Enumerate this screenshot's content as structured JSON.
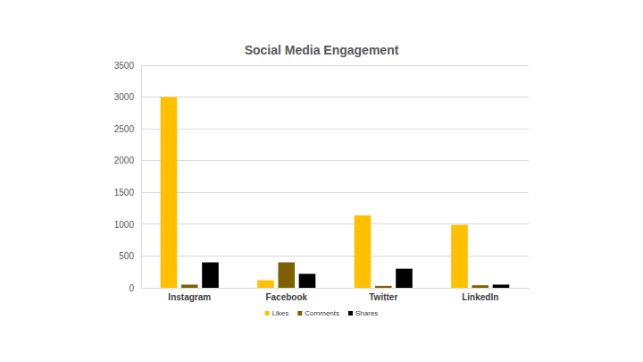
{
  "chart_data": {
    "type": "bar",
    "title": "Social Media Engagement",
    "categories": [
      "Instagram",
      "Facebook",
      "Twitter",
      "LinkedIn"
    ],
    "series": [
      {
        "name": "Likes",
        "color": "#ffc000",
        "values": [
          3000,
          120,
          1140,
          990
        ]
      },
      {
        "name": "Comments",
        "color": "#7f6000",
        "values": [
          50,
          400,
          30,
          40
        ]
      },
      {
        "name": "Shares",
        "color": "#000000",
        "values": [
          400,
          220,
          300,
          50
        ]
      }
    ],
    "ylim": [
      0,
      3500
    ],
    "yticks": [
      0,
      500,
      1000,
      1500,
      2000,
      2500,
      3000,
      3500
    ],
    "grid": true,
    "legend": "bottom"
  }
}
